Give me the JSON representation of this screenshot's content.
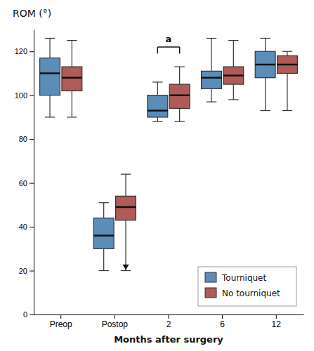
{
  "chart_data": {
    "type": "box",
    "title": "ROM (°)",
    "x_label": "Months after surgery",
    "categories": [
      "Preop",
      "Postop",
      "2",
      "6",
      "12"
    ],
    "series": [
      {
        "name": "Tourniquet",
        "color": "#5B8DB8",
        "boxes": [
          {
            "whislo": 90,
            "q1": 100,
            "med": 110,
            "q3": 117,
            "whishi": 126,
            "fliers": []
          },
          {
            "whislo": 20,
            "q1": 30,
            "med": 36,
            "q3": 44,
            "whishi": 51,
            "fliers": []
          },
          {
            "whislo": 88,
            "q1": 90,
            "med": 93,
            "q3": 100,
            "whishi": 106,
            "fliers": []
          },
          {
            "whislo": 97,
            "q1": 103,
            "med": 108,
            "q3": 111,
            "whishi": 126,
            "fliers": []
          },
          {
            "whislo": 93,
            "q1": 108,
            "med": 114,
            "q3": 120,
            "whishi": 126,
            "fliers": []
          }
        ]
      },
      {
        "name": "No tourniquet",
        "color": "#B05A5A",
        "boxes": [
          {
            "whislo": 90,
            "q1": 102,
            "med": 108,
            "q3": 113,
            "whishi": 125,
            "fliers": []
          },
          {
            "whislo": 20,
            "q1": 43,
            "med": 49,
            "q3": 54,
            "whishi": 64,
            "fliers": [
              22
            ]
          },
          {
            "whislo": 88,
            "q1": 94,
            "med": 100,
            "q3": 105,
            "whishi": 113,
            "fliers": []
          },
          {
            "whislo": 98,
            "q1": 105,
            "med": 109,
            "q3": 113,
            "whishi": 125,
            "fliers": []
          },
          {
            "whislo": 93,
            "q1": 110,
            "med": 114,
            "q3": 118,
            "whishi": 120,
            "fliers": []
          }
        ]
      }
    ],
    "annotations": [
      {
        "text": "a",
        "category": "2",
        "y_bar": 122,
        "y_tick": 119,
        "y": 123.5
      }
    ],
    "ylim": [
      0,
      130
    ],
    "yticks": [
      0,
      20,
      40,
      60,
      80,
      100,
      120
    ],
    "legend": "lower right"
  }
}
